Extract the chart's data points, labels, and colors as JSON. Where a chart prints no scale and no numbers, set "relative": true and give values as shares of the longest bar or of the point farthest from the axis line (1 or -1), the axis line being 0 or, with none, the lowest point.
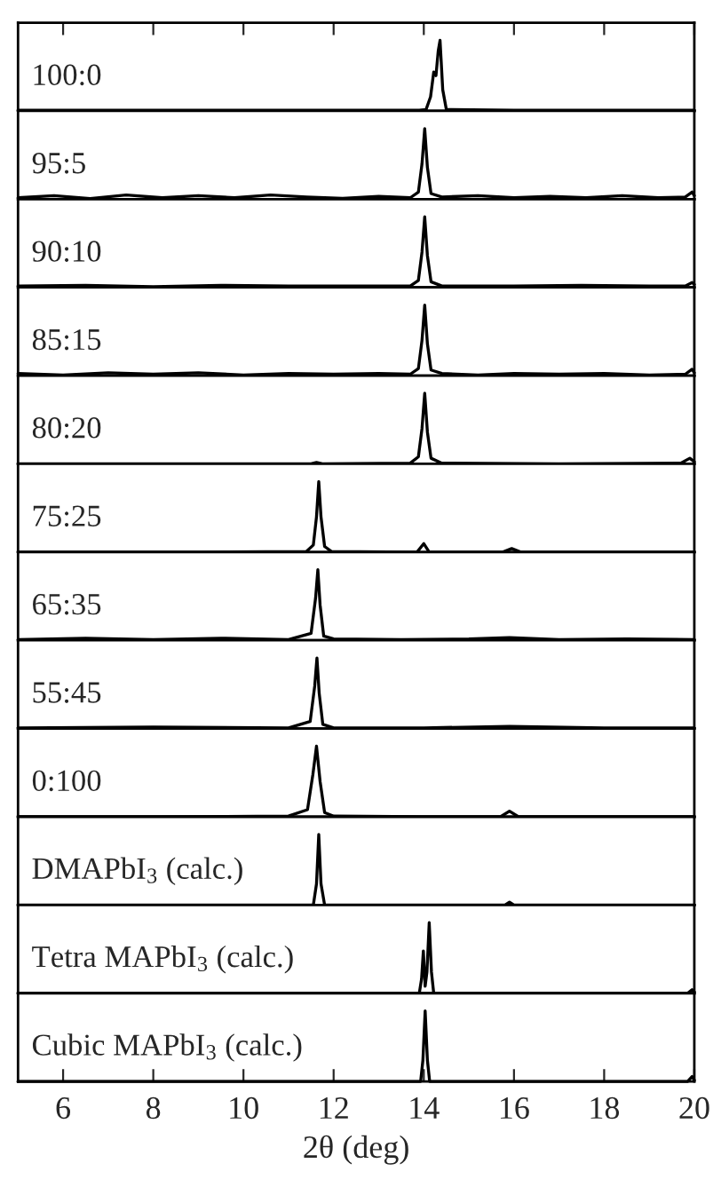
{
  "chart_data": [
    {
      "type": "line",
      "title": "100:0",
      "relative": true,
      "xlim": [
        5,
        20
      ],
      "xticks": [
        {
          "value": 6,
          "label": null
        },
        {
          "value": 8,
          "label": null
        },
        {
          "value": 10,
          "label": null
        },
        {
          "value": 12,
          "label": null
        },
        {
          "value": 14,
          "label": null
        },
        {
          "value": 16,
          "label": null
        },
        {
          "value": 18,
          "label": null
        },
        {
          "value": 20,
          "label": null
        }
      ],
      "tick_labels": false,
      "x": [
        5,
        8,
        11,
        13.9,
        14.05,
        14.15,
        14.22,
        14.27,
        14.32,
        14.36,
        14.42,
        14.5,
        16,
        18,
        20
      ],
      "series": [
        {
          "color": "#000000",
          "values": [
            0.01,
            0.01,
            0.01,
            0.01,
            0.02,
            0.2,
            0.55,
            0.5,
            0.85,
            1,
            0.3,
            0.02,
            0.01,
            0.01,
            0.01
          ]
        }
      ]
    },
    {
      "type": "line",
      "title": "95:5",
      "relative": true,
      "xlim": [
        5,
        20
      ],
      "tick_labels": false,
      "x": [
        5,
        5.8,
        6.6,
        7.4,
        8.2,
        9,
        9.8,
        10.6,
        11.4,
        12.2,
        13,
        13.7,
        13.88,
        13.96,
        14.02,
        14.08,
        14.16,
        14.4,
        15.2,
        16,
        16.8,
        17.6,
        18.4,
        19.2,
        19.8,
        19.95,
        20
      ],
      "series": [
        {
          "color": "#000000",
          "values": [
            0.02,
            0.05,
            0.01,
            0.06,
            0.02,
            0.05,
            0.02,
            0.06,
            0.03,
            0.01,
            0.04,
            0.02,
            0.1,
            0.5,
            1,
            0.45,
            0.08,
            0.03,
            0.05,
            0.02,
            0.04,
            0.02,
            0.05,
            0.02,
            0.03,
            0.1,
            0.05
          ]
        }
      ]
    },
    {
      "type": "line",
      "title": "90:10",
      "relative": true,
      "xlim": [
        5,
        20
      ],
      "tick_labels": false,
      "x": [
        5,
        6.5,
        8,
        9.5,
        11,
        12.5,
        13.7,
        13.88,
        13.96,
        14.02,
        14.08,
        14.16,
        14.4,
        16,
        17.5,
        19,
        19.8,
        19.95,
        20
      ],
      "series": [
        {
          "color": "#000000",
          "values": [
            0.02,
            0.03,
            0.01,
            0.03,
            0.02,
            0.02,
            0.02,
            0.1,
            0.5,
            1,
            0.45,
            0.08,
            0.02,
            0.02,
            0.03,
            0.02,
            0.02,
            0.07,
            0.04
          ]
        }
      ]
    },
    {
      "type": "line",
      "title": "85:15",
      "relative": true,
      "xlim": [
        5,
        20
      ],
      "tick_labels": false,
      "x": [
        5,
        6,
        7,
        8,
        9,
        10,
        11,
        12,
        13,
        13.7,
        13.88,
        13.96,
        14.02,
        14.08,
        14.16,
        14.4,
        15.2,
        16,
        17,
        18,
        19,
        19.8,
        19.95,
        20
      ],
      "series": [
        {
          "color": "#000000",
          "values": [
            0.03,
            0.01,
            0.04,
            0.02,
            0.04,
            0.01,
            0.03,
            0.02,
            0.03,
            0.02,
            0.1,
            0.5,
            1,
            0.45,
            0.08,
            0.03,
            0.01,
            0.03,
            0.02,
            0.03,
            0.01,
            0.02,
            0.09,
            0.04
          ]
        }
      ]
    },
    {
      "type": "line",
      "title": "80:20",
      "relative": true,
      "xlim": [
        5,
        20
      ],
      "tick_labels": false,
      "x": [
        5,
        8,
        11.5,
        11.62,
        11.75,
        13.7,
        13.88,
        13.96,
        14.02,
        14.08,
        14.16,
        14.4,
        17,
        19.7,
        19.9,
        20
      ],
      "series": [
        {
          "color": "#000000",
          "values": [
            0.0,
            0.0,
            0.0,
            0.02,
            0.0,
            0.01,
            0.1,
            0.5,
            1,
            0.45,
            0.08,
            0.01,
            0.0,
            0.01,
            0.08,
            0.03
          ]
        }
      ]
    },
    {
      "type": "line",
      "title": "75:25",
      "relative": true,
      "xlim": [
        5,
        20
      ],
      "tick_labels": false,
      "x": [
        5,
        9,
        11.4,
        11.55,
        11.62,
        11.67,
        11.72,
        11.8,
        11.95,
        13.85,
        14.0,
        14.12,
        15.75,
        15.95,
        16.15,
        18,
        20
      ],
      "series": [
        {
          "color": "#000000",
          "values": [
            0.0,
            0.0,
            0.01,
            0.1,
            0.5,
            1,
            0.5,
            0.08,
            0.01,
            0.0,
            0.12,
            0.0,
            0.0,
            0.05,
            0.0,
            0.0,
            0.0
          ]
        }
      ]
    },
    {
      "type": "line",
      "title": "65:35",
      "relative": true,
      "xlim": [
        5,
        20
      ],
      "tick_labels": false,
      "x": [
        5,
        6.5,
        8,
        9.5,
        11,
        11.5,
        11.6,
        11.65,
        11.7,
        11.78,
        12,
        13.5,
        15,
        15.9,
        17,
        18.5,
        20
      ],
      "series": [
        {
          "color": "#000000",
          "values": [
            0.01,
            0.03,
            0.01,
            0.03,
            0.01,
            0.1,
            0.6,
            1,
            0.5,
            0.06,
            0.02,
            0.01,
            0.02,
            0.04,
            0.01,
            0.02,
            0.01
          ]
        }
      ]
    },
    {
      "type": "line",
      "title": "55:45",
      "relative": true,
      "xlim": [
        5,
        20
      ],
      "tick_labels": false,
      "x": [
        5,
        8,
        11,
        11.48,
        11.58,
        11.63,
        11.68,
        11.76,
        12,
        14,
        15.9,
        18,
        20
      ],
      "series": [
        {
          "color": "#000000",
          "values": [
            0.01,
            0.02,
            0.01,
            0.1,
            0.6,
            1,
            0.5,
            0.06,
            0.01,
            0.01,
            0.03,
            0.01,
            0.01
          ]
        }
      ]
    },
    {
      "type": "line",
      "title": "0:100",
      "relative": true,
      "xlim": [
        5,
        20
      ],
      "tick_labels": false,
      "x": [
        5,
        8,
        11,
        11.42,
        11.54,
        11.62,
        11.7,
        11.8,
        12,
        14,
        15.7,
        15.9,
        16.1,
        18,
        20
      ],
      "series": [
        {
          "color": "#000000",
          "values": [
            0.0,
            0.0,
            0.01,
            0.1,
            0.6,
            1,
            0.5,
            0.06,
            0.01,
            0.0,
            0.0,
            0.08,
            0.0,
            0.0,
            0.0
          ]
        }
      ]
    },
    {
      "type": "line",
      "title": "DMAPbI$_{3}$ (calc.)",
      "relative": true,
      "xlim": [
        5,
        20
      ],
      "tick_labels": false,
      "x": [
        5,
        11.55,
        11.62,
        11.67,
        11.72,
        11.8,
        15.8,
        15.9,
        16.0,
        20
      ],
      "series": [
        {
          "color": "#000000",
          "values": [
            0.0,
            0.0,
            0.3,
            1,
            0.3,
            0.0,
            0.0,
            0.04,
            0.0,
            0.0
          ]
        }
      ]
    },
    {
      "type": "line",
      "title": "Tetra MAPbI$_{3}$ (calc.)",
      "relative": true,
      "xlim": [
        5,
        20
      ],
      "tick_labels": false,
      "x": [
        5,
        13.9,
        13.95,
        13.99,
        14.03,
        14.07,
        14.12,
        14.17,
        14.22,
        19.85,
        19.95,
        20
      ],
      "series": [
        {
          "color": "#000000",
          "values": [
            0.0,
            0.0,
            0.2,
            0.6,
            0.1,
            0.3,
            1,
            0.3,
            0.0,
            0.0,
            0.05,
            0.02
          ]
        }
      ]
    },
    {
      "type": "line",
      "title": "Cubic MAPbI$_{3}$ (calc.)",
      "xlabel": "2θ (deg)",
      "relative": true,
      "xlim": [
        5,
        20
      ],
      "xticks": [
        6,
        8,
        10,
        12,
        14,
        16,
        18,
        20
      ],
      "tick_labels": "x",
      "x": [
        5,
        13.93,
        13.98,
        14.03,
        14.08,
        14.13,
        19.85,
        19.95,
        20
      ],
      "series": [
        {
          "color": "#000000",
          "values": [
            0.0,
            0.0,
            0.3,
            1,
            0.3,
            0.0,
            0.0,
            0.07,
            0.02
          ]
        }
      ]
    }
  ]
}
